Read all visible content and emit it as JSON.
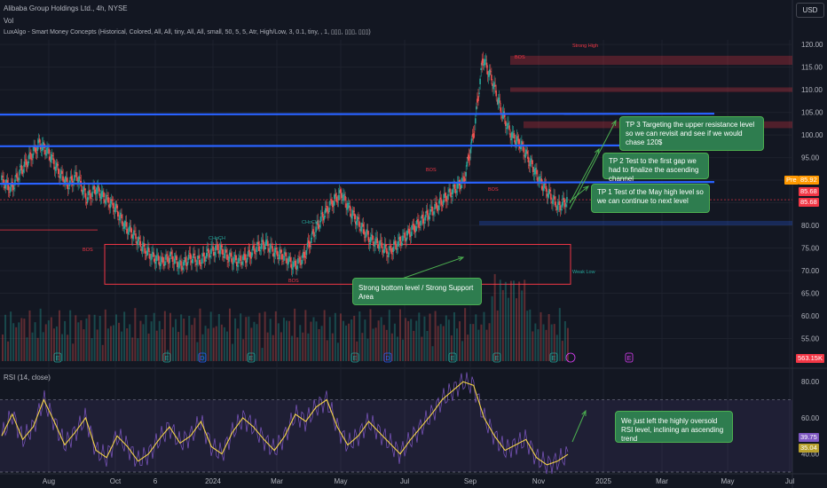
{
  "header": {
    "title": "Alibaba Group Holdings Ltd., 4h, NYSE",
    "vol": "Vol",
    "indicator": "LuxAlgo - Smart Money Concepts (Historical, Colored, All, All, tiny, All, All, small, 50, 5, 5, Atr, High/Low, 3, 0.1, tiny, , 1, ▯▯▯, ▯▯▯, ▯▯▯)",
    "currency": "USD"
  },
  "annotations": {
    "tp3": "TP 3 Targeting the upper resistance level so we can revisit and see if we would chase 120$",
    "tp2": "TP 2 Test to the first gap we had to finalize the ascending channel",
    "tp1": "TP 1 Test of the May high level so we can continue to next level",
    "support": "Strong bottom level / Strong Support Area",
    "rsi_note": "We just left the highly oversold RSI level, inclining an ascending trend"
  },
  "price_tags": {
    "pre_label": "Pre",
    "pre_value": "85.92",
    "last_value": "85.68",
    "close_value": "85.68",
    "volume_value": "563.15K",
    "rsi_a": "39.75",
    "rsi_b": "35.04"
  },
  "rsi_title": "RSI (14, close)",
  "smc_labels": [
    "BOS",
    "BOS",
    "CHoCH",
    "BOS",
    "BOS",
    "CHoCH",
    "BOS",
    "Strong High",
    "Weak Low"
  ],
  "colors": {
    "background": "#131722",
    "resistance": "#2962ff",
    "support_box": "#f23645",
    "note_fill": "#2e7d4f",
    "rsi_line": "#f5d547",
    "rsi_fast": "#7e57c2"
  },
  "chart_data": [
    {
      "type": "candlestick",
      "x_ticks": [
        "Aug",
        "Oct",
        "6",
        "2024",
        "Mar",
        "May",
        "Jul",
        "Sep",
        "Nov",
        "2025",
        "Mar",
        "May",
        "Jul"
      ],
      "y_ticks": [
        55,
        60,
        65,
        70,
        75,
        80,
        85,
        90,
        95,
        100,
        105,
        110,
        115,
        120
      ],
      "ylim": [
        50,
        121
      ],
      "resistance_levels": [
        104.5,
        97.5,
        89.2
      ],
      "support_zone": [
        67,
        75.8
      ],
      "fvg_zones": [
        [
          115.5,
          117.5
        ],
        [
          109.5,
          110.5
        ],
        [
          101.5,
          103
        ],
        [
          80,
          81
        ]
      ],
      "series": [
        {
          "values": [
            90,
            88,
            92,
            95,
            98,
            96,
            92,
            89,
            91,
            86,
            88,
            86,
            84,
            80,
            78,
            75,
            73,
            72,
            73,
            71,
            73,
            72,
            74,
            75,
            73,
            72,
            73,
            75,
            76,
            74,
            73,
            71,
            73,
            78,
            82,
            85,
            87,
            83,
            80,
            77,
            76,
            74,
            76,
            78,
            80,
            82,
            84,
            86,
            88,
            90,
            100,
            117,
            112,
            105,
            100,
            98,
            94,
            90,
            87,
            84,
            85.68
          ]
        }
      ]
    },
    {
      "type": "line",
      "title": "RSI (14, close)",
      "y_ticks": [
        40,
        60,
        80
      ],
      "ylim": [
        30,
        85
      ],
      "reference_levels": [
        70,
        30
      ],
      "series": [
        {
          "values": [
            50,
            62,
            48,
            55,
            70,
            58,
            45,
            52,
            60,
            42,
            38,
            50,
            44,
            36,
            40,
            48,
            55,
            46,
            50,
            58,
            44,
            40,
            52,
            60,
            55,
            48,
            42,
            50,
            62,
            58,
            66,
            70,
            55,
            45,
            50,
            58,
            52,
            46,
            40,
            48,
            55,
            62,
            70,
            75,
            80,
            78,
            60,
            50,
            42,
            45,
            48,
            38,
            34,
            36,
            39.75
          ]
        }
      ]
    }
  ]
}
